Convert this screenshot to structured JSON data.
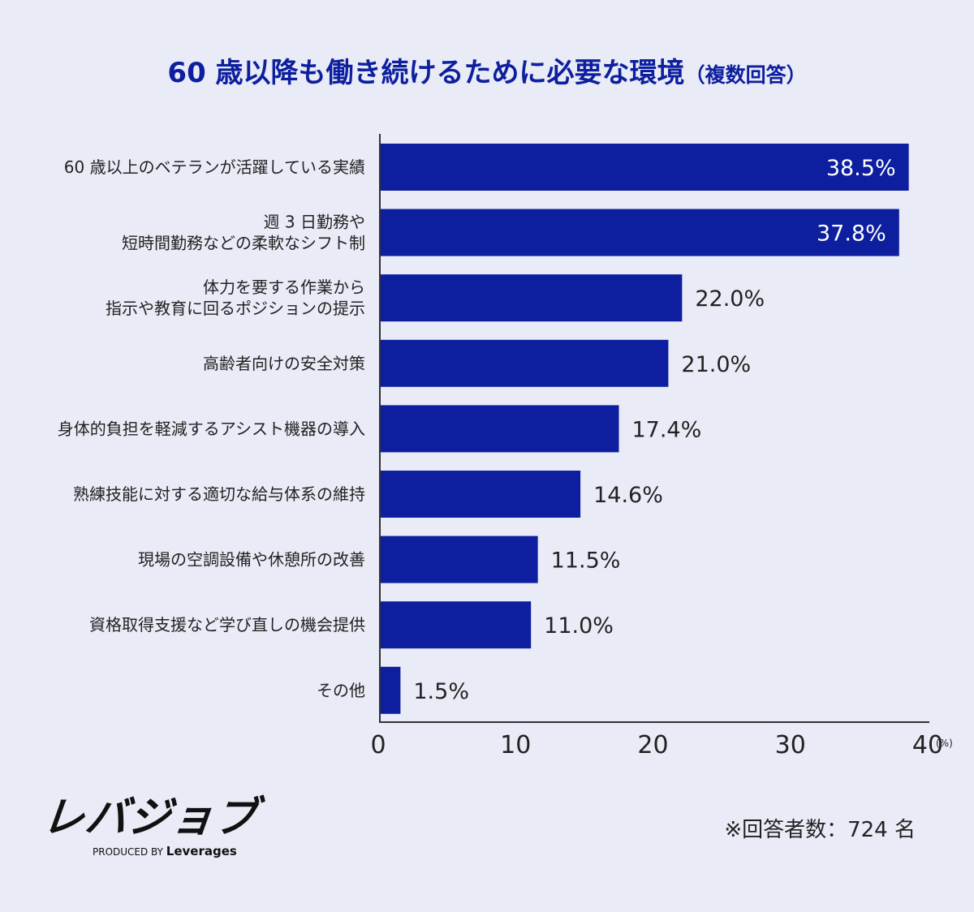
{
  "title": "60 歳以降も働き続けるために必要な環境",
  "subtitle": "（複数回答）",
  "chart_data": {
    "type": "bar",
    "orientation": "horizontal",
    "categories": [
      [
        "60 歳以上のベテランが活躍している実績"
      ],
      [
        "週 3 日勤務や",
        "短時間勤務などの柔軟なシフト制"
      ],
      [
        "体力を要する作業から",
        "指示や教育に回るポジションの提示"
      ],
      [
        "高齢者向けの安全対策"
      ],
      [
        "身体的負担を軽減するアシスト機器の導入"
      ],
      [
        "熟練技能に対する適切な給与体系の維持"
      ],
      [
        "現場の空調設備や休憩所の改善"
      ],
      [
        "資格取得支援など学び直しの機会提供"
      ],
      [
        "その他"
      ]
    ],
    "values": [
      38.5,
      37.8,
      22.0,
      21.0,
      17.4,
      14.6,
      11.5,
      11.0,
      1.5
    ],
    "value_labels": [
      "38.5%",
      "37.8%",
      "22.0%",
      "21.0%",
      "17.4%",
      "14.6%",
      "11.5%",
      "11.0%",
      "1.5%"
    ],
    "xlim": [
      0,
      40
    ],
    "xticks": [
      "0",
      "10",
      "20",
      "30",
      "40"
    ],
    "xunit": "(%)",
    "bar_color": "#0d1f9e",
    "grid": false
  },
  "logo": {
    "main": "レバジョブ",
    "produced_by": "PRODUCED BY",
    "brand": "Leverages"
  },
  "note": "※回答者数：724 名"
}
